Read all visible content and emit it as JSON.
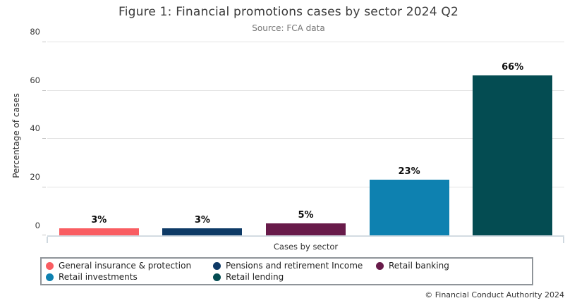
{
  "header": {
    "title": "Figure 1: Financial promotions cases by sector 2024 Q2",
    "subtitle": "Source: FCA data"
  },
  "chart_data": {
    "type": "bar",
    "title": "Figure 1: Financial promotions cases by sector 2024 Q2",
    "subtitle": "Source: FCA data",
    "categories": [
      "General insurance & protection",
      "Pensions and retirement Income",
      "Retail banking",
      "Retail investments",
      "Retail lending"
    ],
    "values": [
      3,
      3,
      5,
      23,
      66
    ],
    "bar_labels": [
      "3%",
      "3%",
      "5%",
      "23%",
      "66%"
    ],
    "colors": [
      "#F95D62",
      "#0E3A66",
      "#681B4A",
      "#0E81B0",
      "#044C52"
    ],
    "xlabel": "Cases by sector",
    "ylabel": "Percentage of cases",
    "ylim": [
      0,
      80
    ],
    "yticks": [
      0,
      20,
      40,
      60,
      80
    ],
    "grid": "horizontal",
    "legend_position": "bottom"
  },
  "footer": {
    "copyright": "© Financial Conduct Authority 2024"
  }
}
